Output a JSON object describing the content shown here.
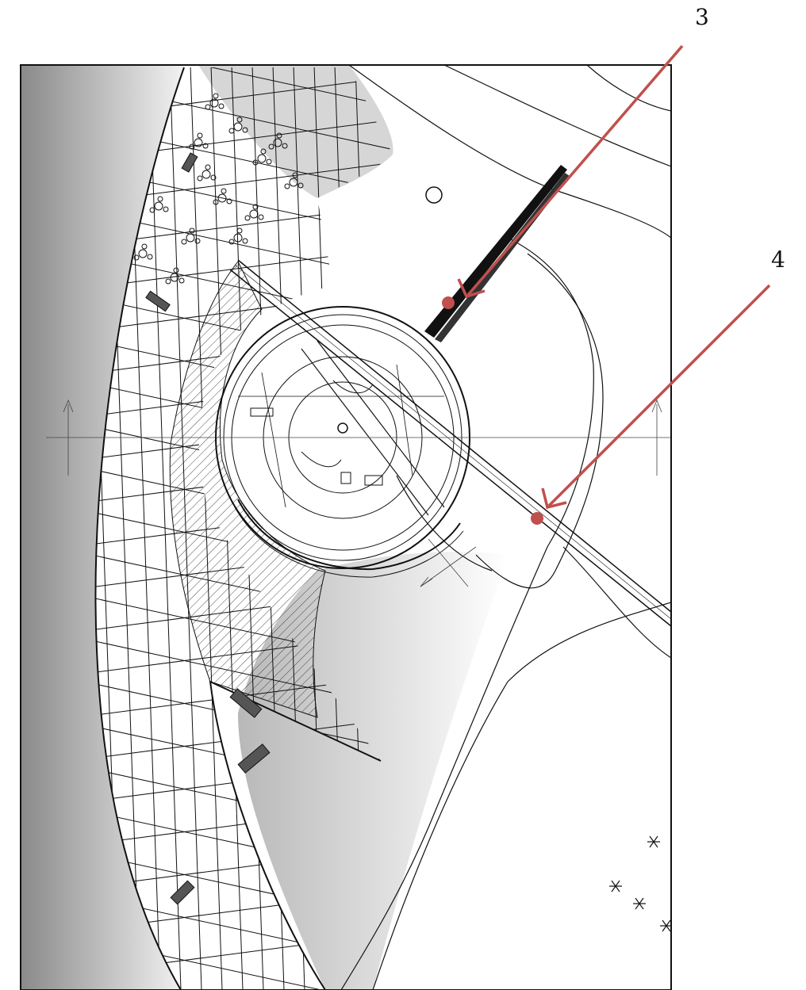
{
  "callouts": [
    {
      "label": "3"
    },
    {
      "label": "4"
    }
  ],
  "colors": {
    "callout": "#c0504d",
    "line": "#111111",
    "paper": "#ffffff",
    "shade_dark": "#8a8a8a"
  }
}
